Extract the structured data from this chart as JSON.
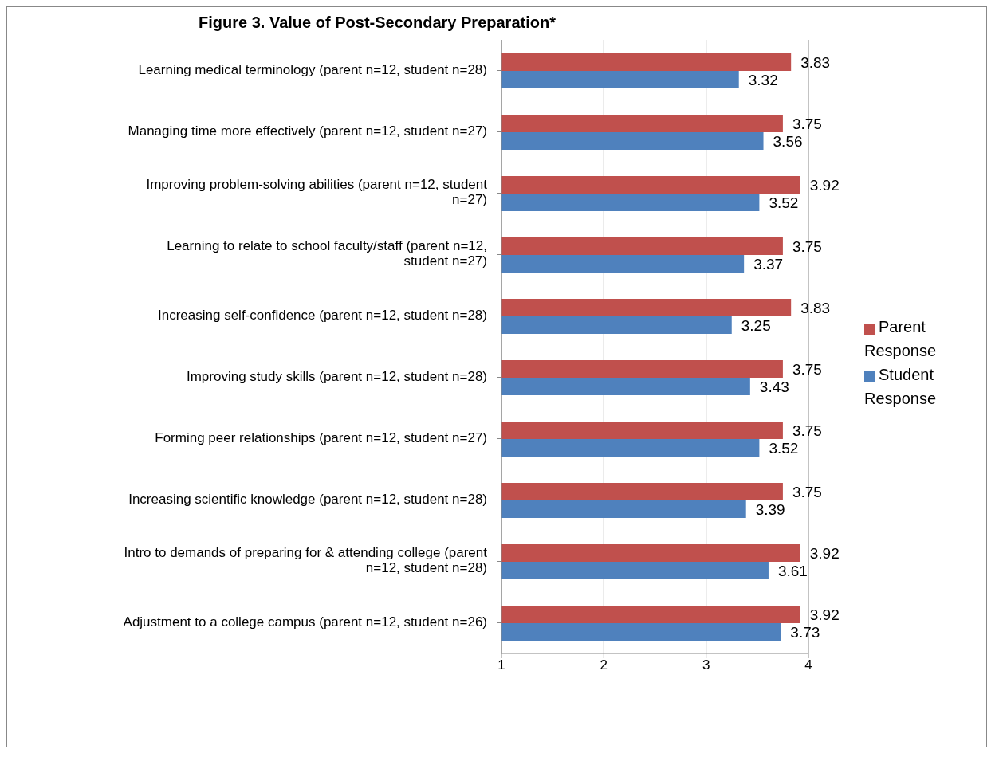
{
  "chart_data": {
    "type": "bar",
    "orientation": "horizontal",
    "title": "Figure 3. Value of Post-Secondary Preparation*",
    "categories": [
      "Learning medical terminology (parent n=12, student n=28)",
      "Managing time more effectively (parent n=12, student n=27)",
      "Improving problem-solving abilities (parent n=12, student n=27)",
      "Learning to relate to school faculty/staff (parent n=12, student n=27)",
      "Increasing self-confidence (parent n=12, student n=28)",
      "Improving study skills (parent n=12, student n=28)",
      "Forming peer relationships (parent n=12, student n=27)",
      "Increasing scientific knowledge (parent n=12, student n=28)",
      "Intro to demands of preparing for & attending college (parent n=12, student n=28)",
      "Adjustment to a college campus  (parent n=12, student n=26)"
    ],
    "series": [
      {
        "name": "Parent Response",
        "color": "#c0504d",
        "values": [
          3.83,
          3.75,
          3.92,
          3.75,
          3.83,
          3.75,
          3.75,
          3.75,
          3.92,
          3.92
        ]
      },
      {
        "name": "Student Response",
        "color": "#4f81bd",
        "values": [
          3.32,
          3.56,
          3.52,
          3.37,
          3.25,
          3.43,
          3.52,
          3.39,
          3.61,
          3.73
        ]
      }
    ],
    "xlim": [
      1,
      4
    ],
    "xticks": [
      1,
      2,
      3,
      4
    ],
    "grid": "x",
    "legend": "right",
    "data_labels": true
  }
}
